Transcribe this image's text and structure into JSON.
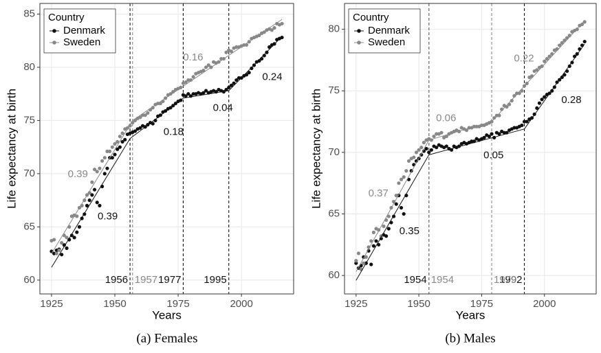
{
  "chart_data": [
    {
      "type": "scatter",
      "caption": "(a) Females",
      "xlabel": "Years",
      "ylabel": "Life expectancy at birth",
      "legend_title": "Country",
      "legend": "top-left",
      "grid": true,
      "xlim": [
        1920.4,
        2020.6
      ],
      "ylim": [
        58.7,
        86.0
      ],
      "xticks": [
        1925,
        1950,
        1975,
        2000
      ],
      "yticks": [
        60,
        65,
        70,
        75,
        80,
        85
      ],
      "x": [
        1925,
        1926,
        1927,
        1928,
        1929,
        1930,
        1931,
        1932,
        1933,
        1934,
        1935,
        1936,
        1937,
        1938,
        1939,
        1940,
        1941,
        1942,
        1943,
        1944,
        1945,
        1946,
        1947,
        1948,
        1949,
        1950,
        1951,
        1952,
        1953,
        1954,
        1955,
        1956,
        1957,
        1958,
        1959,
        1960,
        1961,
        1962,
        1963,
        1964,
        1965,
        1966,
        1967,
        1968,
        1969,
        1970,
        1971,
        1972,
        1973,
        1974,
        1975,
        1976,
        1977,
        1978,
        1979,
        1980,
        1981,
        1982,
        1983,
        1984,
        1985,
        1986,
        1987,
        1988,
        1989,
        1990,
        1991,
        1992,
        1993,
        1994,
        1995,
        1996,
        1997,
        1998,
        1999,
        2000,
        2001,
        2002,
        2003,
        2004,
        2005,
        2006,
        2007,
        2008,
        2009,
        2010,
        2011,
        2012,
        2013,
        2014,
        2015,
        2016
      ],
      "series": [
        {
          "name": "Denmark",
          "color": "#111111",
          "values": [
            62.7,
            62.5,
            62.8,
            62.9,
            62.4,
            63.3,
            63.0,
            63.8,
            64.2,
            64.0,
            64.5,
            65.0,
            65.8,
            66.2,
            67.0,
            67.5,
            68.0,
            68.5,
            67.3,
            67.0,
            68.8,
            70.0,
            70.5,
            71.5,
            71.5,
            71.8,
            72.3,
            72.5,
            73.0,
            73.2,
            73.7,
            73.8,
            73.9,
            74.0,
            74.2,
            74.3,
            74.5,
            74.4,
            74.6,
            74.8,
            74.7,
            75.0,
            75.4,
            75.5,
            75.8,
            75.9,
            76.1,
            76.2,
            76.4,
            76.6,
            76.8,
            76.9,
            77.4,
            77.3,
            77.5,
            77.3,
            77.5,
            77.5,
            77.6,
            77.5,
            77.6,
            77.8,
            77.6,
            77.7,
            77.8,
            77.7,
            77.9,
            77.8,
            77.7,
            77.9,
            78.1,
            78.3,
            78.5,
            78.8,
            79.0,
            79.0,
            79.2,
            79.3,
            79.5,
            79.9,
            80.2,
            80.5,
            80.6,
            80.8,
            81.1,
            81.4,
            81.9,
            82.1,
            82.2,
            82.6,
            82.7,
            82.8
          ],
          "breakpoints": [
            1956,
            1977,
            1995
          ],
          "fit": [
            {
              "x": [
                1925,
                1956
              ],
              "y": [
                61.2,
                73.3
              ],
              "slope": 0.39
            },
            {
              "x": [
                1956,
                1977
              ],
              "y": [
                73.3,
                77.1
              ],
              "slope": 0.18
            },
            {
              "x": [
                1977,
                1995
              ],
              "y": [
                77.1,
                77.8
              ],
              "slope": 0.04
            },
            {
              "x": [
                1995,
                2016
              ],
              "y": [
                77.8,
                82.9
              ],
              "slope": 0.24
            }
          ]
        },
        {
          "name": "Sweden",
          "color": "#888888",
          "values": [
            63.7,
            63.8,
            62.5,
            62.8,
            63.5,
            64.2,
            64.0,
            65.0,
            66.0,
            66.1,
            66.0,
            66.8,
            67.0,
            67.5,
            68.0,
            68.2,
            69.2,
            70.4,
            70.2,
            70.5,
            71.2,
            71.5,
            72.1,
            72.1,
            72.5,
            72.8,
            73.0,
            73.5,
            73.8,
            74.2,
            74.3,
            74.5,
            74.8,
            75.0,
            75.2,
            75.3,
            75.5,
            75.5,
            75.7,
            76.0,
            76.2,
            76.5,
            76.6,
            76.6,
            76.8,
            77.1,
            77.4,
            77.5,
            77.7,
            77.9,
            78.0,
            78.1,
            78.5,
            78.6,
            78.8,
            78.8,
            79.1,
            79.4,
            79.5,
            79.6,
            79.7,
            80.0,
            80.2,
            80.0,
            80.5,
            80.4,
            80.5,
            80.8,
            80.8,
            81.4,
            81.6,
            81.5,
            81.8,
            81.9,
            81.9,
            82.0,
            82.1,
            82.1,
            82.4,
            82.7,
            82.8,
            82.9,
            83.0,
            83.2,
            83.3,
            83.5,
            83.6,
            83.5,
            83.7,
            84.1,
            84.0,
            84.1
          ],
          "breakpoints": [
            1957
          ],
          "fit": [
            {
              "x": [
                1925,
                1957
              ],
              "y": [
                62.5,
                75.0
              ],
              "slope": 0.39
            },
            {
              "x": [
                1957,
                2016
              ],
              "y": [
                75.0,
                84.5
              ],
              "slope": 0.16
            }
          ]
        }
      ]
    },
    {
      "type": "scatter",
      "caption": "(b) Males",
      "xlabel": "Years",
      "ylabel": "Life expectancy at birth",
      "legend_title": "Country",
      "legend": "top-left",
      "grid": true,
      "xlim": [
        1920.4,
        2020.6
      ],
      "ylim": [
        58.5,
        82.1
      ],
      "xticks": [
        1925,
        1950,
        1975,
        2000
      ],
      "yticks": [
        60,
        65,
        70,
        75,
        80
      ],
      "x": [
        1925,
        1926,
        1927,
        1928,
        1929,
        1930,
        1931,
        1932,
        1933,
        1934,
        1935,
        1936,
        1937,
        1938,
        1939,
        1940,
        1941,
        1942,
        1943,
        1944,
        1945,
        1946,
        1947,
        1948,
        1949,
        1950,
        1951,
        1952,
        1953,
        1954,
        1955,
        1956,
        1957,
        1958,
        1959,
        1960,
        1961,
        1962,
        1963,
        1964,
        1965,
        1966,
        1967,
        1968,
        1969,
        1970,
        1971,
        1972,
        1973,
        1974,
        1975,
        1976,
        1977,
        1978,
        1979,
        1980,
        1981,
        1982,
        1983,
        1984,
        1985,
        1986,
        1987,
        1988,
        1989,
        1990,
        1991,
        1992,
        1993,
        1994,
        1995,
        1996,
        1997,
        1998,
        1999,
        2000,
        2001,
        2002,
        2003,
        2004,
        2005,
        2006,
        2007,
        2008,
        2009,
        2010,
        2011,
        2012,
        2013,
        2014,
        2015,
        2016
      ],
      "series": [
        {
          "name": "Denmark",
          "color": "#111111",
          "values": [
            61.0,
            60.6,
            60.8,
            61.5,
            61.0,
            62.0,
            60.9,
            62.4,
            62.8,
            62.5,
            63.0,
            63.3,
            63.2,
            63.8,
            64.3,
            64.8,
            65.8,
            66.5,
            65.5,
            65.0,
            66.5,
            67.8,
            68.5,
            69.0,
            69.3,
            69.5,
            69.8,
            70.1,
            70.3,
            70.0,
            70.2,
            70.5,
            70.4,
            70.6,
            70.5,
            70.4,
            70.5,
            70.3,
            70.2,
            70.5,
            70.4,
            70.5,
            70.7,
            70.8,
            70.7,
            70.8,
            70.9,
            70.9,
            71.1,
            71.0,
            71.1,
            71.2,
            71.4,
            71.3,
            71.5,
            71.2,
            71.6,
            71.5,
            71.7,
            71.6,
            71.6,
            71.8,
            71.9,
            72.0,
            72.0,
            72.1,
            72.2,
            72.5,
            72.5,
            72.7,
            72.8,
            73.1,
            73.6,
            74.0,
            74.3,
            74.5,
            74.7,
            74.8,
            75.0,
            75.3,
            75.7,
            75.9,
            76.1,
            76.3,
            76.6,
            77.0,
            77.3,
            77.8,
            78.0,
            78.4,
            78.7,
            79.0
          ],
          "breakpoints": [
            1954,
            1992
          ],
          "fit": [
            {
              "x": [
                1925,
                1954
              ],
              "y": [
                59.6,
                69.8
              ],
              "slope": 0.35
            },
            {
              "x": [
                1954,
                1992
              ],
              "y": [
                69.8,
                71.9
              ],
              "slope": 0.05
            },
            {
              "x": [
                1992,
                2016
              ],
              "y": [
                71.9,
                78.8
              ],
              "slope": 0.28
            }
          ]
        },
        {
          "name": "Sweden",
          "color": "#888888",
          "values": [
            61.2,
            61.8,
            60.5,
            61.0,
            61.5,
            62.3,
            62.8,
            63.5,
            63.8,
            63.7,
            63.2,
            64.0,
            64.5,
            64.8,
            65.5,
            66.0,
            66.5,
            67.5,
            67.8,
            68.0,
            68.5,
            69.3,
            69.5,
            69.6,
            70.0,
            70.2,
            70.4,
            70.8,
            71.0,
            71.1,
            71.0,
            71.3,
            71.5,
            71.5,
            71.6,
            71.2,
            71.3,
            71.5,
            71.6,
            71.7,
            71.8,
            71.7,
            72.0,
            71.9,
            71.8,
            72.0,
            72.0,
            72.1,
            72.1,
            72.1,
            72.2,
            72.2,
            72.3,
            72.4,
            72.5,
            72.8,
            73.0,
            73.0,
            73.5,
            73.8,
            73.7,
            73.9,
            74.2,
            74.6,
            74.8,
            74.8,
            75.0,
            75.4,
            75.6,
            76.1,
            76.2,
            76.6,
            76.7,
            76.9,
            77.0,
            77.4,
            77.6,
            77.8,
            78.0,
            78.3,
            78.4,
            78.7,
            78.9,
            79.1,
            79.3,
            79.5,
            79.8,
            79.9,
            80.0,
            80.3,
            80.4,
            80.6
          ],
          "breakpoints": [
            1954,
            1979
          ],
          "fit": [
            {
              "x": [
                1925,
                1954
              ],
              "y": [
                60.3,
                71.0
              ],
              "slope": 0.37
            },
            {
              "x": [
                1954,
                1979
              ],
              "y": [
                71.0,
                72.5
              ],
              "slope": 0.06
            },
            {
              "x": [
                1979,
                2016
              ],
              "y": [
                72.5,
                80.7
              ],
              "slope": 0.22
            }
          ]
        }
      ]
    }
  ]
}
